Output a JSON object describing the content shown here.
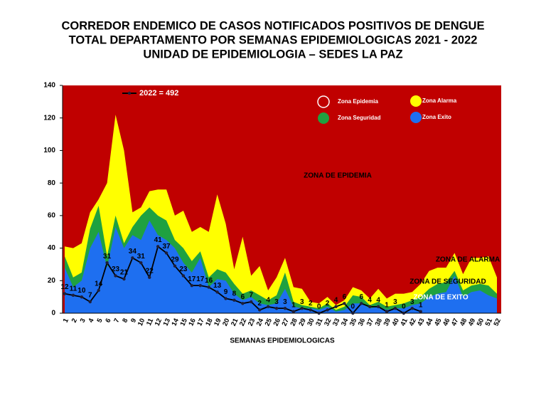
{
  "chart_data": {
    "type": "endemic-channel",
    "title": [
      "CORREDOR ENDEMICO DE CASOS NOTIFICADOS POSITIVOS DE DENGUE",
      "TOTAL DEPARTAMENTO  POR SEMANAS EPIDEMIOLOGICAS  2021 - 2022",
      "UNIDAD DE EPIDEMIOLOGIA – SEDES LA PAZ"
    ],
    "x_label": "SEMANAS EPIDEMIOLOGICAS",
    "categories": [
      "1",
      "2",
      "3",
      "4",
      "5",
      "6",
      "7",
      "8",
      "9",
      "10",
      "11",
      "12",
      "13",
      "14",
      "15",
      "16",
      "17",
      "18",
      "19",
      "20",
      "21",
      "22",
      "23",
      "24",
      "25",
      "26",
      "27",
      "28",
      "29",
      "30",
      "31",
      "32",
      "33",
      "34",
      "35",
      "36",
      "37",
      "38",
      "39",
      "40",
      "41",
      "42",
      "43",
      "44",
      "45",
      "46",
      "47",
      "48",
      "49",
      "50",
      "51",
      "52"
    ],
    "epidemic_zone": {
      "name": "Zona Epidemia",
      "color": "#c00000"
    },
    "series": [
      {
        "name": "Zona Alarma",
        "kind": "area",
        "color": "#ffff00",
        "values": [
          41,
          40,
          43,
          62,
          70,
          80,
          122,
          100,
          62,
          65,
          75,
          76,
          76,
          60,
          63,
          50,
          53,
          50,
          73,
          55,
          27,
          47,
          23,
          29,
          14,
          22,
          34,
          16,
          15,
          7,
          6,
          10,
          5,
          8,
          16,
          14,
          9,
          15,
          9,
          12,
          12,
          13,
          18,
          26,
          28,
          28,
          37,
          24,
          34,
          34,
          35,
          22
        ]
      },
      {
        "name": "Zona Seguridad",
        "kind": "area",
        "color": "#1fa140",
        "values": [
          35,
          22,
          25,
          52,
          66,
          35,
          60,
          43,
          53,
          60,
          65,
          60,
          57,
          45,
          40,
          32,
          38,
          22,
          27,
          25,
          18,
          12,
          14,
          11,
          8,
          11,
          25,
          7,
          5,
          4,
          3,
          6,
          2,
          4,
          11,
          10,
          5,
          7,
          4,
          5,
          6,
          8,
          10,
          15,
          18,
          19,
          26,
          14,
          17,
          18,
          17,
          12
        ]
      },
      {
        "name": "Zona Exito",
        "kind": "area",
        "color": "#1e6ff0",
        "values": [
          28,
          16,
          20,
          40,
          50,
          28,
          53,
          40,
          48,
          45,
          57,
          48,
          45,
          40,
          31,
          25,
          34,
          16,
          21,
          20,
          12,
          8,
          10,
          6,
          5,
          6,
          15,
          4,
          3,
          3,
          2,
          4,
          1,
          2,
          6,
          6,
          3,
          4,
          2,
          3,
          3,
          5,
          6,
          10,
          12,
          13,
          23,
          10,
          13,
          14,
          11,
          9
        ]
      },
      {
        "name": "2022 = 492",
        "kind": "line",
        "color": "#000000",
        "values": [
          12,
          11,
          10,
          7,
          14,
          31,
          23,
          21,
          34,
          31,
          22,
          41,
          37,
          29,
          23,
          17,
          17,
          16,
          13,
          9,
          8,
          6,
          7,
          2,
          4,
          3,
          3,
          1,
          3,
          2,
          0,
          2,
          4,
          6,
          0,
          6,
          4,
          4,
          1,
          3,
          0,
          3,
          1,
          null,
          null,
          null,
          null,
          null,
          null,
          null,
          null,
          null
        ]
      }
    ],
    "annotations": [
      "ZONA DE EPIDEMIA",
      "ZONA DE ALARMA",
      "ZONA DE  SEGURIDAD",
      "ZONA DE  EXITO"
    ],
    "ylim": [
      0,
      140
    ],
    "yticks": [
      0,
      20,
      40,
      60,
      80,
      100,
      120,
      140
    ],
    "grid": false
  }
}
